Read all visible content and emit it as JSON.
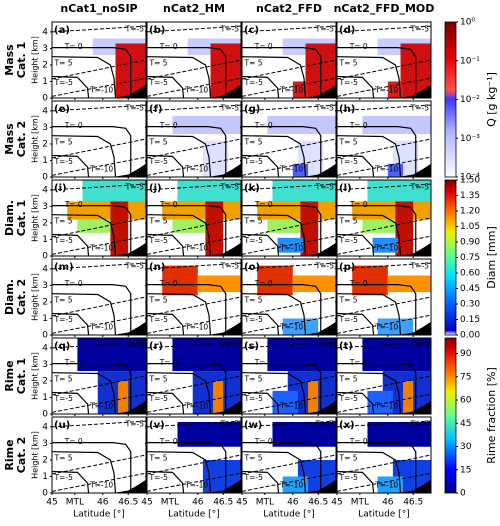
{
  "columns": [
    "nCat1_noSIP",
    "nCat2_HM",
    "nCat2_FFD",
    "nCat2_FFD_MOD"
  ],
  "rows": [
    {
      "label": [
        "Mass",
        "Cat. 1"
      ]
    },
    {
      "label": [
        "Mass",
        "Cat. 2"
      ]
    },
    {
      "label": [
        "Diam.",
        "Cat. 1"
      ]
    },
    {
      "label": [
        "Diam.",
        "Cat. 2"
      ]
    },
    {
      "label": [
        "Rime",
        "Cat. 1"
      ]
    },
    {
      "label": [
        "Rime",
        "Cat. 2"
      ]
    }
  ],
  "panels": [
    "(a)",
    "(b)",
    "(c)",
    "(d)",
    "(e)",
    "(f)",
    "(g)",
    "(h)",
    "(i)",
    "(j)",
    "(k)",
    "(l)",
    "(m)",
    "(n)",
    "(o)",
    "(p)",
    "(q)",
    "(r)",
    "(s)",
    "(t)",
    "(u)",
    "(v)",
    "(w)",
    "(x)"
  ],
  "y_axis": {
    "label": "Height [km]",
    "lim": [
      0,
      4.6
    ],
    "ticks": [
      0,
      1,
      2,
      3,
      4
    ]
  },
  "x_axis": {
    "label": "Latitude [°]",
    "lim": [
      45,
      46.85
    ],
    "ticks": [
      45,
      {
        "value": 45.45,
        "label": "MTL"
      },
      46,
      46.5
    ]
  },
  "contour_labels": {
    "zero": "T= 0",
    "minus5": "T=-5",
    "plus5": "T= 5",
    "minus10": "T=-10"
  },
  "colorbars": [
    {
      "label": "Q [g kg⁻¹]",
      "log": true,
      "lim": [
        0.0001,
        1
      ],
      "ticks": [
        {
          "value": 1,
          "label": "10⁰"
        },
        {
          "value": 0.1,
          "label": "10⁻¹"
        },
        {
          "value": 0.01,
          "label": "10⁻²"
        },
        {
          "value": 0.001,
          "label": "10⁻³"
        },
        {
          "value": 0.0001,
          "label": "10⁻⁴"
        }
      ]
    },
    {
      "label": "Diam [mm]",
      "log": false,
      "lim": [
        0,
        1.5
      ],
      "ticks": [
        {
          "value": 0,
          "label": "0.00"
        },
        0.15,
        {
          "value": 0.3,
          "label": "0.30"
        },
        0.45,
        {
          "value": 0.6,
          "label": "0.60"
        },
        0.75,
        {
          "value": 0.9,
          "label": "0.90"
        },
        1.05,
        {
          "value": 1.2,
          "label": "1.20"
        },
        1.35,
        {
          "value": 1.5,
          "label": "1.50"
        }
      ]
    },
    {
      "label": "Rime fraction [%]",
      "log": false,
      "lim": [
        0,
        100
      ],
      "ticks": [
        0,
        15,
        30,
        45,
        60,
        75,
        90
      ]
    }
  ]
}
